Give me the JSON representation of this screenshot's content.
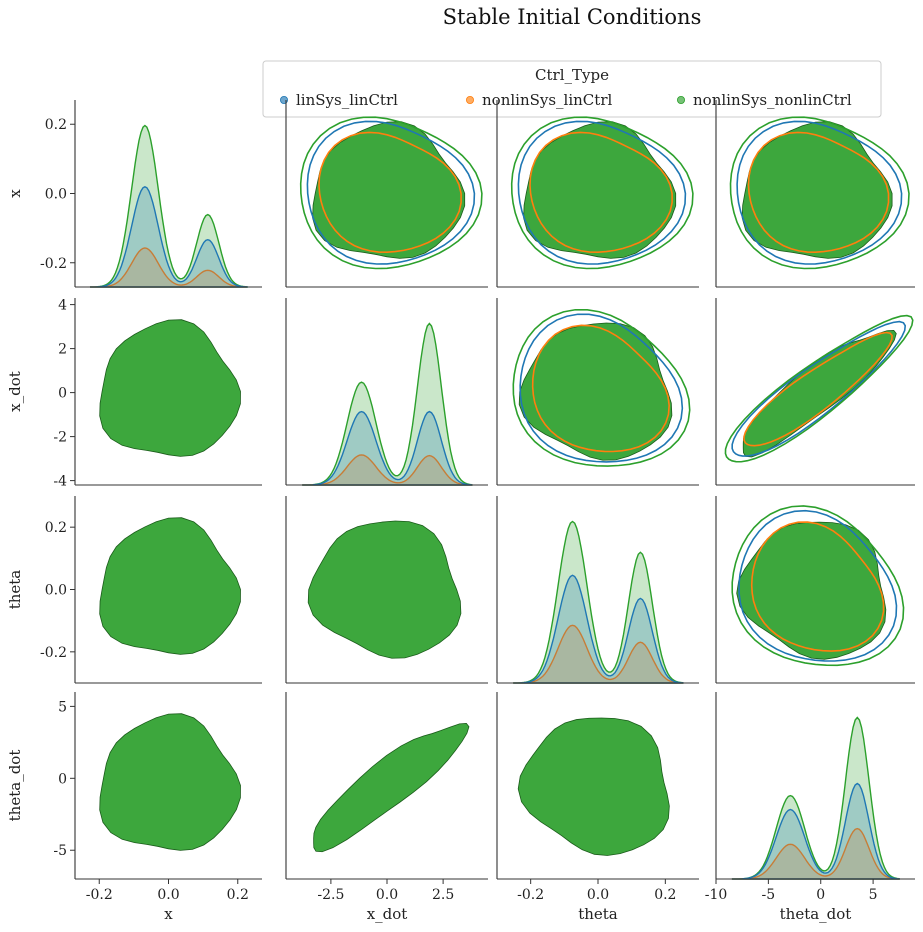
{
  "chart_data": {
    "type": "scatter",
    "title": "Stable Initial Conditions",
    "variables": [
      "x",
      "x_dot",
      "theta",
      "theta_dot"
    ],
    "axis_labels": {
      "x": "x",
      "x_dot": "x_dot",
      "theta": "theta",
      "theta_dot": "theta_dot"
    },
    "axis_ranges": {
      "x": [
        -0.27,
        0.27
      ],
      "x_dot": [
        -4.2,
        4.3
      ],
      "theta": [
        -0.3,
        0.3
      ],
      "theta_dot": [
        -7,
        6
      ]
    },
    "x_axis_ranges": {
      "x": [
        -0.27,
        0.27
      ],
      "x_dot": [
        -4.5,
        4.5
      ],
      "theta": [
        -0.3,
        0.3
      ],
      "theta_dot": [
        -10,
        9
      ]
    },
    "ticks": {
      "x": [
        -0.2,
        0.0,
        0.2
      ],
      "x_dot": [
        -4,
        -2,
        0,
        2,
        4
      ],
      "theta": [
        -0.2,
        0.0,
        0.2
      ],
      "theta_dot": [
        -5,
        0,
        5
      ]
    },
    "x_ticks": {
      "x": [
        "-0.2",
        "0.0",
        "0.2"
      ],
      "x_dot": [
        "-2.5",
        "0.0",
        "2.5"
      ],
      "theta": [
        "-0.2",
        "0.0",
        "0.2"
      ],
      "theta_dot": [
        "-10",
        "-5",
        "0",
        "5"
      ]
    },
    "y_ticks": {
      "x": [
        "0.2",
        "0.0",
        "-0.2"
      ],
      "x_dot": [
        "4",
        "2",
        "0",
        "-2",
        "-4"
      ],
      "theta": [
        "0.2",
        "0.0",
        "-0.2"
      ],
      "theta_dot": [
        "5",
        "0",
        "-5"
      ]
    },
    "legend": {
      "title": "Ctrl_Type",
      "placement": "top",
      "entries": [
        "linSys_linCtrl",
        "nonlinSys_linCtrl",
        "nonlinSys_nonlinCtrl"
      ]
    },
    "series": [
      {
        "name": "linSys_linCtrl",
        "color": "#1f77b4",
        "kde_peaks": {
          "x": [
            0.36,
            0.17
          ],
          "x_dot": [
            1.0,
            1.0
          ],
          "theta": [
            0.14,
            0.11
          ],
          "theta_dot": [
            0.4,
            0.55
          ]
        }
      },
      {
        "name": "nonlinSys_linCtrl",
        "color": "#ff7f0e",
        "kde_peaks": {
          "x": [
            0.14,
            0.06
          ],
          "x_dot": [
            0.41,
            0.4
          ],
          "theta": [
            0.075,
            0.053
          ],
          "theta_dot": [
            0.2,
            0.29
          ]
        }
      },
      {
        "name": "nonlinSys_nonlinCtrl",
        "color": "#2ca02c",
        "kde_peaks": {
          "x": [
            0.58,
            0.26
          ],
          "x_dot": [
            1.4,
            2.2
          ],
          "theta": [
            0.21,
            0.17
          ],
          "theta_dot": [
            0.48,
            0.93
          ]
        }
      }
    ],
    "grid": false
  }
}
